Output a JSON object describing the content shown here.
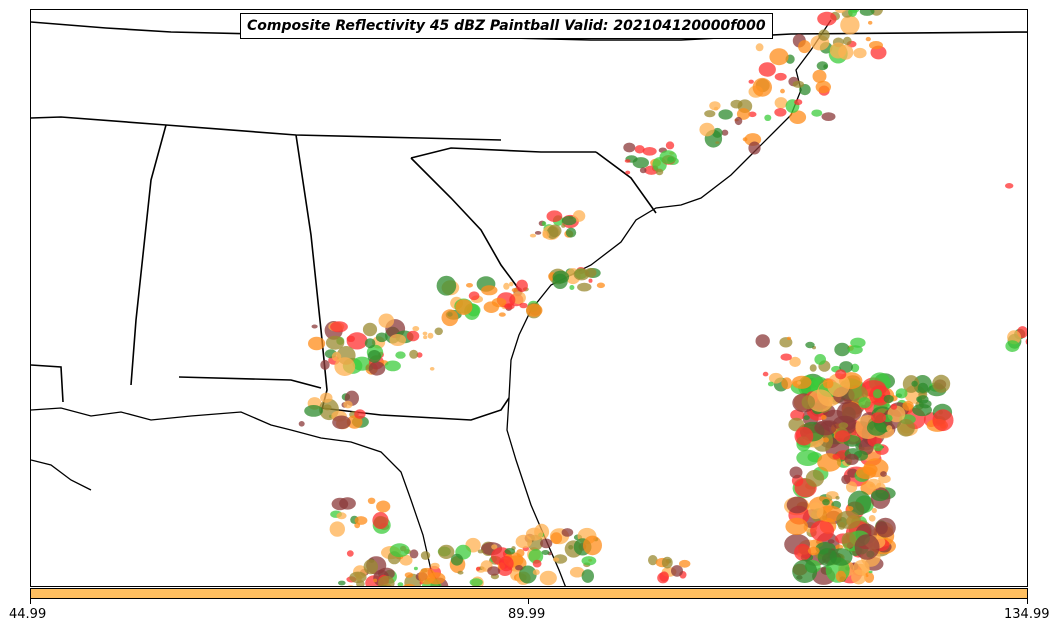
{
  "title": "Composite Reflectivity 45 dBZ Paintball Valid: 202104120000f000",
  "colorbar": {
    "color": "#ffbf60",
    "ticks": [
      "44.99",
      "89.99",
      "134.99"
    ]
  },
  "member_colors": [
    "#ff3030",
    "#ff8c1a",
    "#ffb050",
    "#3ccc3c",
    "#2e8b2e",
    "#8b3a3a",
    "#9a8a30"
  ],
  "map_features": [
    "state-borders",
    "coastline"
  ]
}
